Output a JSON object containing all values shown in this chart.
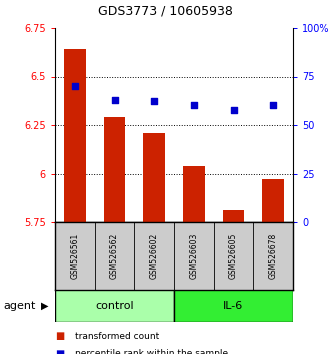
{
  "title": "GDS3773 / 10605938",
  "samples": [
    "GSM526561",
    "GSM526562",
    "GSM526602",
    "GSM526603",
    "GSM526605",
    "GSM526678"
  ],
  "bar_values": [
    6.64,
    6.29,
    6.21,
    6.04,
    5.81,
    5.97
  ],
  "percentile_values": [
    70.0,
    63.0,
    62.5,
    60.5,
    57.5,
    60.5
  ],
  "bar_bottom": 5.75,
  "ylim_left": [
    5.75,
    6.75
  ],
  "ylim_right": [
    0,
    100
  ],
  "yticks_left": [
    5.75,
    6.0,
    6.25,
    6.5,
    6.75
  ],
  "ytick_labels_left": [
    "5.75",
    "6",
    "6.25",
    "6.5",
    "6.75"
  ],
  "yticks_right": [
    0,
    25,
    50,
    75,
    100
  ],
  "ytick_labels_right": [
    "0",
    "25",
    "50",
    "75",
    "100%"
  ],
  "hlines": [
    6.0,
    6.25,
    6.5
  ],
  "bar_color": "#cc2200",
  "dot_color": "#0000cc",
  "control_color": "#aaffaa",
  "il6_color": "#33ee33",
  "agent_label": "agent",
  "control_label": "control",
  "il6_label": "IL-6",
  "legend_bar_label": "transformed count",
  "legend_dot_label": "percentile rank within the sample",
  "background_color": "#ffffff",
  "sample_bg_color": "#cccccc",
  "n_control": 3,
  "n_il6": 3
}
